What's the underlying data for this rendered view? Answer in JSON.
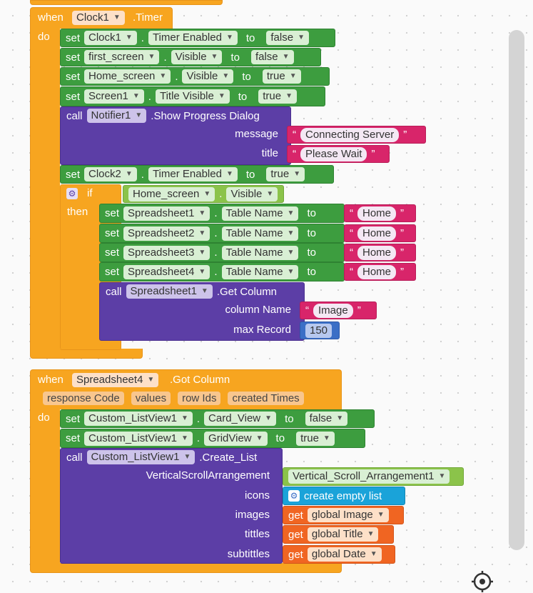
{
  "event1": {
    "when": "when",
    "component": "Clock1",
    "event": ".Timer",
    "do": "do",
    "rows": [
      {
        "set": "set",
        "comp": "Clock1",
        "prop": "Timer Enabled",
        "to": "to",
        "value": "false"
      },
      {
        "set": "set",
        "comp": "first_screen",
        "prop": "Visible",
        "to": "to",
        "value": "false"
      },
      {
        "set": "set",
        "comp": "Home_screen",
        "prop": "Visible",
        "to": "to",
        "value": "true"
      },
      {
        "set": "set",
        "comp": "Screen1",
        "prop": "Title Visible",
        "to": "to",
        "value": "true"
      }
    ],
    "call1": {
      "call": "call",
      "comp": "Notifier1",
      "method": ".Show Progress Dialog",
      "arg1_label": "message",
      "arg1_value": "Connecting Server",
      "arg2_label": "title",
      "arg2_value": "Please Wait"
    },
    "row5": {
      "set": "set",
      "comp": "Clock2",
      "prop": "Timer Enabled",
      "to": "to",
      "value": "true"
    },
    "if_block": {
      "if": "if",
      "then": "then",
      "cond_comp": "Home_screen",
      "cond_prop": "Visible"
    },
    "inner_rows": [
      {
        "set": "set",
        "comp": "Spreadsheet1",
        "prop": "Table Name",
        "to": "to",
        "value": "Home"
      },
      {
        "set": "set",
        "comp": "Spreadsheet2",
        "prop": "Table Name",
        "to": "to",
        "value": "Home"
      },
      {
        "set": "set",
        "comp": "Spreadsheet3",
        "prop": "Table Name",
        "to": "to",
        "value": "Home"
      },
      {
        "set": "set",
        "comp": "Spreadsheet4",
        "prop": "Table Name",
        "to": "to",
        "value": "Home"
      }
    ],
    "call2": {
      "call": "call",
      "comp": "Spreadsheet1",
      "method": ".Get Column",
      "arg1_label": "column Name",
      "arg1_value": "Image",
      "arg2_label": "max Record",
      "arg2_value": "150"
    }
  },
  "event2": {
    "when": "when",
    "component": "Spreadsheet4",
    "event": ".Got Column",
    "do": "do",
    "params": [
      "response Code",
      "values",
      "row Ids",
      "created Times"
    ],
    "rows": [
      {
        "set": "set",
        "comp": "Custom_ListView1",
        "prop": "Card_View",
        "to": "to",
        "value": "false"
      },
      {
        "set": "set",
        "comp": "Custom_ListView1",
        "prop": "GridView",
        "to": "to",
        "value": "true"
      }
    ],
    "call": {
      "call": "call",
      "comp": "Custom_ListView1",
      "method": ".Create_List",
      "args": [
        {
          "label": "VerticalScrollArrangement",
          "value": "Vertical_Scroll_Arrangement1"
        },
        {
          "label": "icons",
          "value": "create empty list"
        },
        {
          "label": "images",
          "get": "get",
          "value": "global Image"
        },
        {
          "label": "tittles",
          "get": "get",
          "value": "global Title"
        },
        {
          "label": "subtittles",
          "get": "get",
          "value": "global Date"
        }
      ]
    }
  },
  "icons": {
    "gear": "gear-icon",
    "target": "target-icon",
    "caret": "▼"
  },
  "colors": {
    "event": "#f7a520",
    "setter": "#3d9d3f",
    "call": "#5c3ea6",
    "text": "#d8256a",
    "variable": "#f06522",
    "number": "#3b6fc6",
    "list": "#1aa3d9"
  }
}
